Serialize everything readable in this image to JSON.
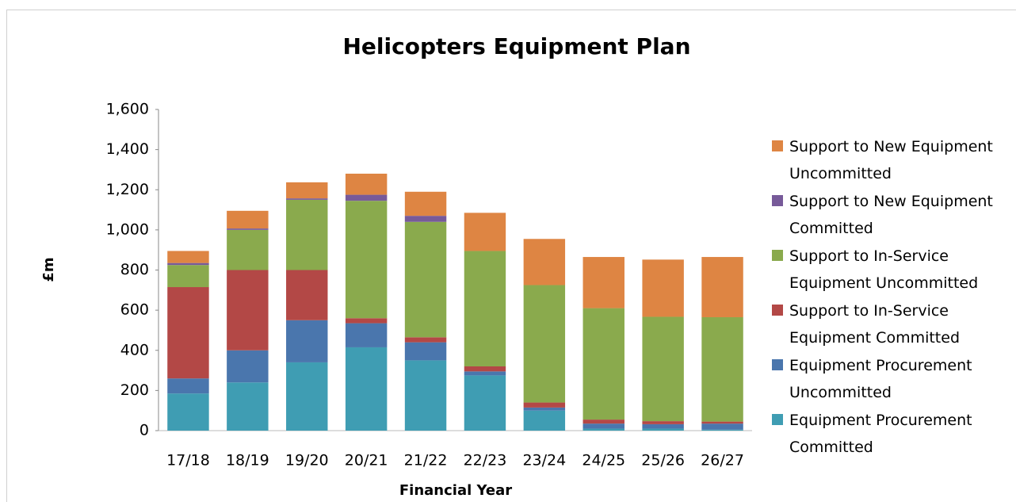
{
  "chart_data": {
    "type": "bar",
    "stacked": true,
    "title": "Helicopters Equipment Plan",
    "xlabel": "Financial Year",
    "ylabel": "£m",
    "categories": [
      "17/18",
      "18/19",
      "19/20",
      "20/21",
      "21/22",
      "22/23",
      "23/24",
      "24/25",
      "25/26",
      "26/27"
    ],
    "series": [
      {
        "name": "Equipment Procurement Committed",
        "color": "#3f9db3",
        "values": [
          185,
          240,
          340,
          415,
          350,
          275,
          100,
          10,
          10,
          5
        ]
      },
      {
        "name": "Equipment Procurement Uncommitted",
        "color": "#4a76ad",
        "values": [
          75,
          160,
          210,
          120,
          90,
          20,
          15,
          25,
          22,
          30
        ]
      },
      {
        "name": "Support to In-Service Equipment Committed",
        "color": "#b34846",
        "values": [
          455,
          400,
          250,
          25,
          25,
          25,
          25,
          20,
          15,
          10
        ]
      },
      {
        "name": "Support to In-Service Equipment Uncommitted",
        "color": "#8aaa4d",
        "values": [
          110,
          200,
          350,
          585,
          575,
          575,
          585,
          555,
          520,
          520
        ]
      },
      {
        "name": "Support to New Equipment Committed",
        "color": "#775a99",
        "values": [
          10,
          7,
          7,
          30,
          30,
          0,
          0,
          0,
          0,
          0
        ]
      },
      {
        "name": "Support to New Equipment Uncommitted",
        "color": "#de8543",
        "values": [
          60,
          88,
          80,
          105,
          120,
          190,
          230,
          255,
          285,
          300
        ]
      }
    ],
    "ylim": [
      0,
      1600
    ],
    "yticks": [
      0,
      200,
      400,
      600,
      800,
      {
        "value": 1000,
        "label": "1,000"
      },
      {
        "value": 1200,
        "label": "1,200"
      },
      {
        "value": 1400,
        "label": "1,400"
      },
      {
        "value": 1600,
        "label": "1,600"
      }
    ],
    "grid": false,
    "legend": "right"
  }
}
